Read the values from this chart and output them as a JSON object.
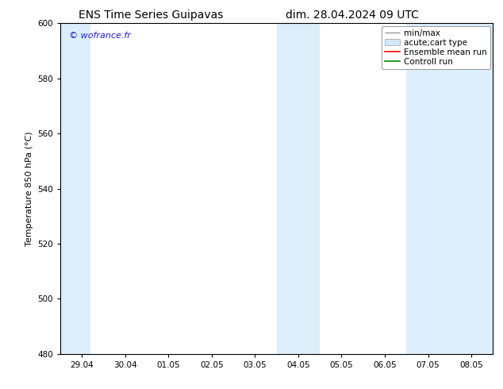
{
  "title_left": "ENS Time Series Guipavas",
  "title_right": "dim. 28.04.2024 09 UTC",
  "ylabel": "Temperature 850 hPa (°C)",
  "watermark": "© wofrance.fr",
  "watermark_color": "#1a1aff",
  "ylim": [
    480,
    600
  ],
  "yticks": [
    480,
    500,
    520,
    540,
    560,
    580,
    600
  ],
  "xtick_labels": [
    "29.04",
    "30.04",
    "01.05",
    "02.05",
    "03.05",
    "04.05",
    "05.05",
    "06.05",
    "07.05",
    "08.05"
  ],
  "x_positions": [
    0,
    1,
    2,
    3,
    4,
    5,
    6,
    7,
    8,
    9
  ],
  "xlim": [
    -0.5,
    9.5
  ],
  "shaded_bands": [
    {
      "xmin": -0.5,
      "xmax": 0.2
    },
    {
      "xmin": 4.5,
      "xmax": 5.5
    },
    {
      "xmin": 7.5,
      "xmax": 9.5
    }
  ],
  "shaded_color": "#dceefa",
  "background_color": "#ffffff",
  "plot_bg_color": "#ffffff",
  "legend_entries": [
    {
      "label": "min/max",
      "color": "#999999",
      "lw": 1.0,
      "type": "minmax"
    },
    {
      "label": "acute;cart type",
      "color": "#d0e8f8",
      "lw": 1.0,
      "type": "band"
    },
    {
      "label": "Ensemble mean run",
      "color": "#ff0000",
      "lw": 1.2,
      "type": "line"
    },
    {
      "label": "Controll run",
      "color": "#008800",
      "lw": 1.2,
      "type": "line"
    }
  ],
  "spine_color": "#000000",
  "tick_color": "#000000",
  "font_size_title": 10,
  "font_size_axis": 8,
  "font_size_tick": 7.5,
  "font_size_legend": 7.5,
  "font_size_watermark": 8
}
